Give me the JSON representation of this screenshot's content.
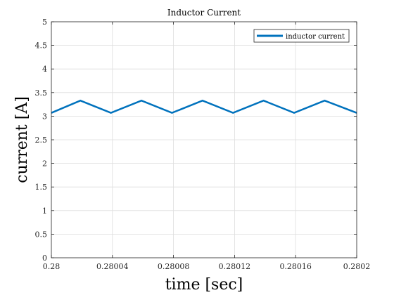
{
  "chart_data": {
    "type": "line",
    "title": "Inductor Current",
    "xlabel": "time [sec]",
    "ylabel": "current [A]",
    "xlim": [
      0.28,
      0.2802
    ],
    "ylim": [
      0,
      5
    ],
    "x_ticks": [
      0.28,
      0.28004,
      0.28008,
      0.28012,
      0.28016,
      0.2802
    ],
    "x_tick_labels": [
      "0.28",
      "0.28004",
      "0.28008",
      "0.28012",
      "0.28016",
      "0.2802"
    ],
    "y_ticks": [
      0,
      0.5,
      1,
      1.5,
      2,
      2.5,
      3,
      3.5,
      4,
      4.5,
      5
    ],
    "y_tick_labels": [
      "0",
      "0.5",
      "1",
      "1.5",
      "2",
      "2.5",
      "3",
      "3.5",
      "4",
      "4.5",
      "5"
    ],
    "grid": true,
    "legend_position": "top-right",
    "series": [
      {
        "name": "inductor current",
        "color": "#0072BD",
        "x": [
          0.28,
          0.280019,
          0.280039,
          0.280059,
          0.280079,
          0.280099,
          0.280119,
          0.280139,
          0.280159,
          0.280179,
          0.2802
        ],
        "y": [
          3.07,
          3.33,
          3.07,
          3.33,
          3.07,
          3.33,
          3.07,
          3.33,
          3.07,
          3.33,
          3.07
        ]
      }
    ]
  }
}
